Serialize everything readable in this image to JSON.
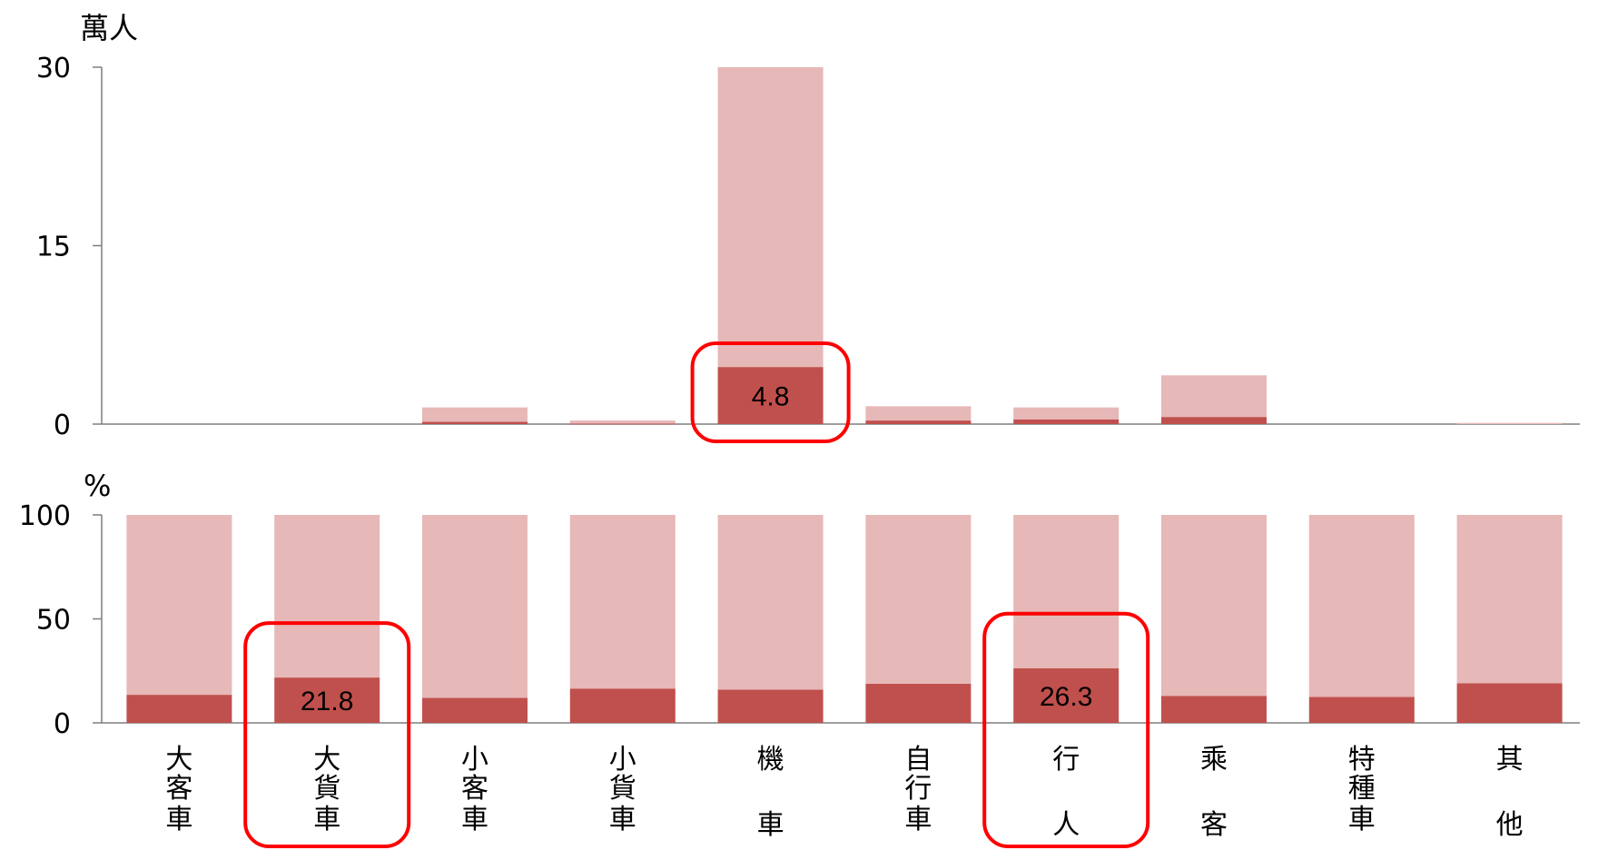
{
  "chart_data": [
    {
      "type": "bar",
      "stacked": true,
      "unit_label": "萬人",
      "ylim": [
        0,
        30
      ],
      "yticks": [
        "0",
        "15",
        "30"
      ],
      "categories": [
        "大客車",
        "大貨車",
        "小客車",
        "小貨車",
        "機車",
        "自行車",
        "行人",
        "乘客",
        "特種車",
        "其他"
      ],
      "series": [
        {
          "values": [
            0,
            0,
            0.2,
            0.05,
            4.8,
            0.3,
            0.4,
            0.6,
            0,
            0
          ]
        },
        {
          "values": [
            0,
            0,
            1.2,
            0.25,
            25.2,
            1.2,
            1.0,
            3.5,
            0,
            0.1
          ]
        }
      ],
      "data_labels": [
        {
          "category": "機車",
          "text": "4.8"
        }
      ],
      "colors": {
        "dark": "#c0504d",
        "light": "#e6b8b7"
      }
    },
    {
      "type": "bar",
      "stacked": true,
      "unit_label": "%",
      "ylim": [
        0,
        100
      ],
      "yticks": [
        "0",
        "50",
        "100"
      ],
      "categories": [
        "大客車",
        "大貨車",
        "小客車",
        "小貨車",
        "機車",
        "自行車",
        "行人",
        "乘客",
        "特種車",
        "其他"
      ],
      "series": [
        {
          "values": [
            13.5,
            21.8,
            12,
            16.5,
            16,
            18.8,
            26.3,
            13,
            12.5,
            19
          ]
        },
        {
          "values": [
            86.5,
            78.2,
            88,
            83.5,
            84,
            81.2,
            73.7,
            87,
            87.5,
            81
          ]
        }
      ],
      "data_labels": [
        {
          "category": "大貨車",
          "text": "21.8"
        },
        {
          "category": "行人",
          "text": "26.3"
        }
      ],
      "colors": {
        "dark": "#c0504d",
        "light": "#e6b8b7"
      }
    }
  ],
  "category_labels": [
    [
      "大",
      "客",
      "車"
    ],
    [
      "大",
      "貨",
      "車"
    ],
    [
      "小",
      "客",
      "車"
    ],
    [
      "小",
      "貨",
      "車"
    ],
    [
      "機",
      "",
      "車"
    ],
    [
      "自",
      "行",
      "車"
    ],
    [
      "行",
      "",
      "人"
    ],
    [
      "乘",
      "",
      "客"
    ],
    [
      "特",
      "種",
      "車"
    ],
    [
      "其",
      "",
      "他"
    ]
  ],
  "highlights": [
    {
      "chart": 0,
      "category": "機車",
      "color": "#ff0000"
    },
    {
      "chart": 1,
      "category": "大貨車",
      "color": "#ff0000"
    },
    {
      "chart": 1,
      "category": "行人",
      "color": "#ff0000"
    }
  ]
}
